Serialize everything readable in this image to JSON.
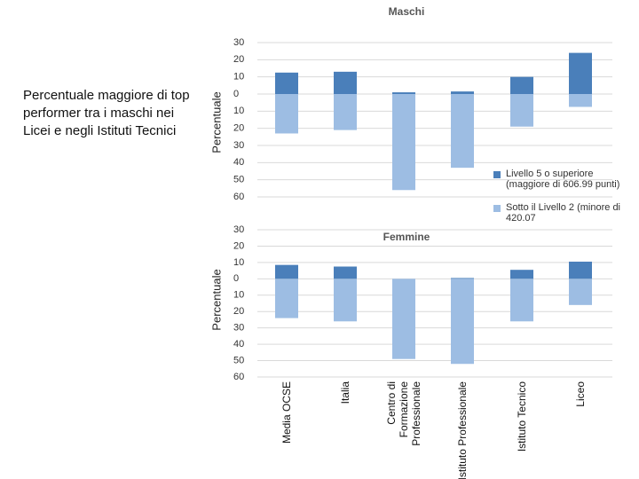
{
  "caption": "Percentuale maggiore di top performer tra i maschi nei Licei e negli Istituti Tecnici",
  "chart_data": [
    {
      "type": "bar",
      "title": "Maschi",
      "y_label": "Percentuale",
      "ylim": [
        30,
        -60
      ],
      "yticks": [
        30,
        20,
        10,
        0,
        {
          "value": -10,
          "label": "10"
        },
        {
          "value": -20,
          "label": "20"
        },
        {
          "value": -30,
          "label": "30"
        },
        {
          "value": -40,
          "label": "40"
        },
        {
          "value": -50,
          "label": "50"
        },
        {
          "value": -60,
          "label": "60"
        }
      ],
      "grid": true,
      "series": [
        {
          "name": "Livello 5 o superiore (maggiore di 606.99 punti)",
          "color": "#4a7fba",
          "values": [
            12.5,
            13,
            1,
            1.5,
            10,
            24
          ]
        },
        {
          "name": "Sotto il Livello 2 (minore di 420.07",
          "color": "#9dbde3",
          "values": [
            -23,
            -21,
            -56,
            -43,
            -19,
            -7.5
          ]
        }
      ]
    },
    {
      "type": "bar",
      "title": "Femmine",
      "y_label": "Percentuale",
      "categories": [
        "Media OCSE",
        "Italia",
        "Centro di Formazione Professionale",
        "Istituto Professionale",
        "Istituto Tecnico",
        "Liceo"
      ],
      "ylim": [
        30,
        -60
      ],
      "yticks": [
        30,
        20,
        10,
        0,
        {
          "value": -10,
          "label": "10"
        },
        {
          "value": -20,
          "label": "20"
        },
        {
          "value": -30,
          "label": "30"
        },
        {
          "value": -40,
          "label": "40"
        },
        {
          "value": -50,
          "label": "50"
        },
        {
          "value": -60,
          "label": "60"
        }
      ],
      "grid": true,
      "series": [
        {
          "color": "#4a7fba",
          "values": [
            8.5,
            7.5,
            0,
            0.5,
            5.5,
            10.5
          ]
        },
        {
          "color": "#9dbde3",
          "values": [
            -24,
            -26,
            -49,
            -52,
            -26,
            -16
          ]
        }
      ]
    }
  ]
}
